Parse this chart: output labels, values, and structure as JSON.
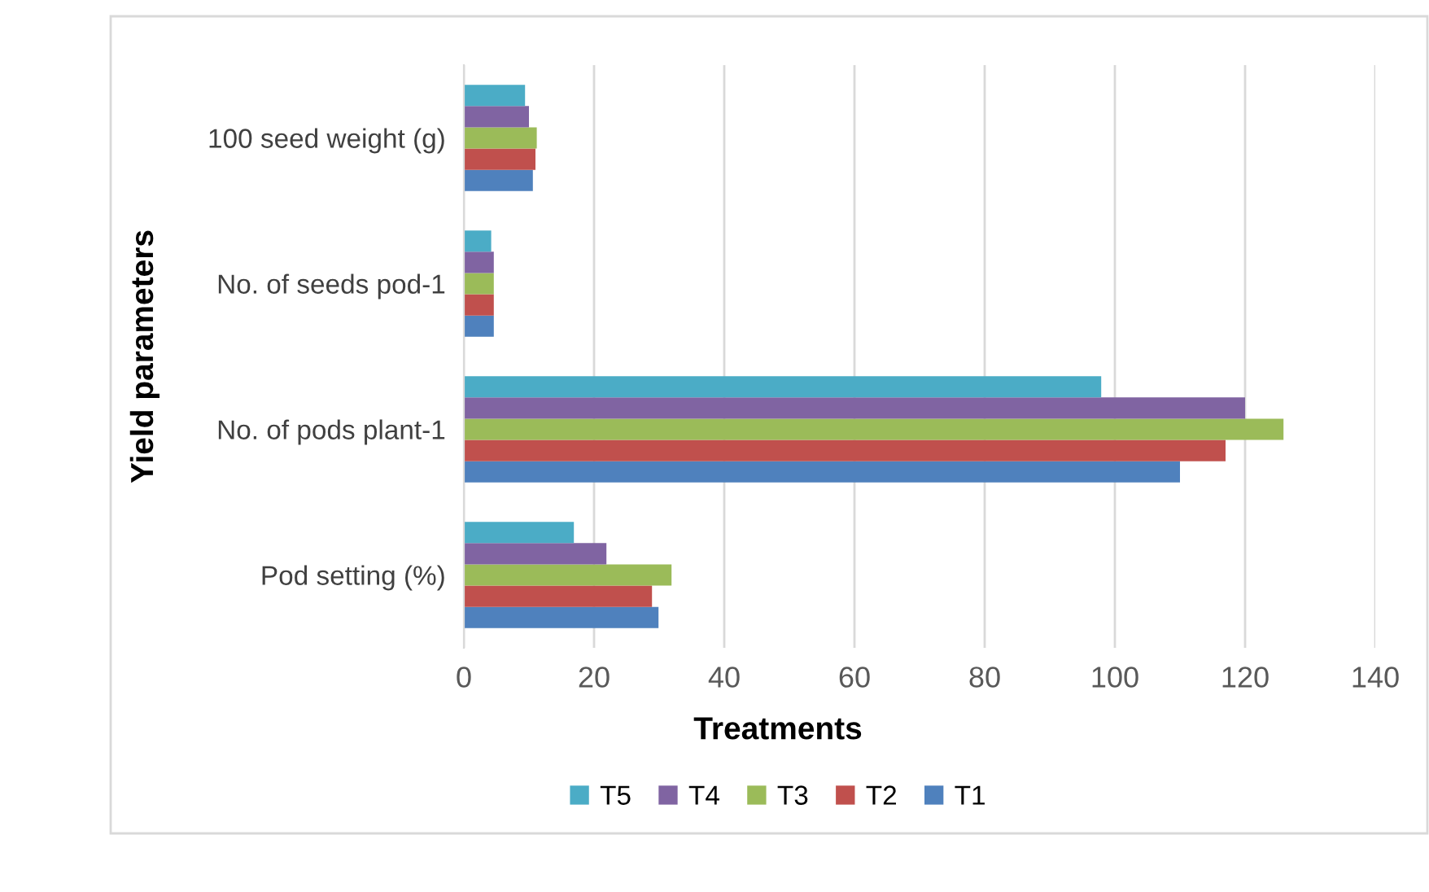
{
  "chart_data": {
    "type": "bar",
    "orientation": "horizontal",
    "xlabel": "Treatments",
    "ylabel": "Yield parameters",
    "categories": [
      "100 seed weight (g)",
      "No. of seeds pod-1",
      "No. of pods plant-1",
      "Pod setting (%)"
    ],
    "series": [
      {
        "name": "T1",
        "color": "#4f81bd",
        "values": [
          10.6,
          4.6,
          110,
          29.9
        ]
      },
      {
        "name": "T2",
        "color": "#c0504d",
        "values": [
          11.0,
          4.6,
          117,
          28.9
        ]
      },
      {
        "name": "T3",
        "color": "#9bbb59",
        "values": [
          11.2,
          4.6,
          125.9,
          31.9
        ]
      },
      {
        "name": "T4",
        "color": "#8064a2",
        "values": [
          10.0,
          4.6,
          120,
          21.9
        ]
      },
      {
        "name": "T5",
        "color": "#4bacc6",
        "values": [
          9.4,
          4.2,
          97.9,
          16.9
        ]
      }
    ],
    "xlim": [
      0,
      140
    ],
    "xticks": [
      0,
      20,
      40,
      60,
      80,
      100,
      120,
      140
    ],
    "grid": "x",
    "legend": "bottom"
  }
}
